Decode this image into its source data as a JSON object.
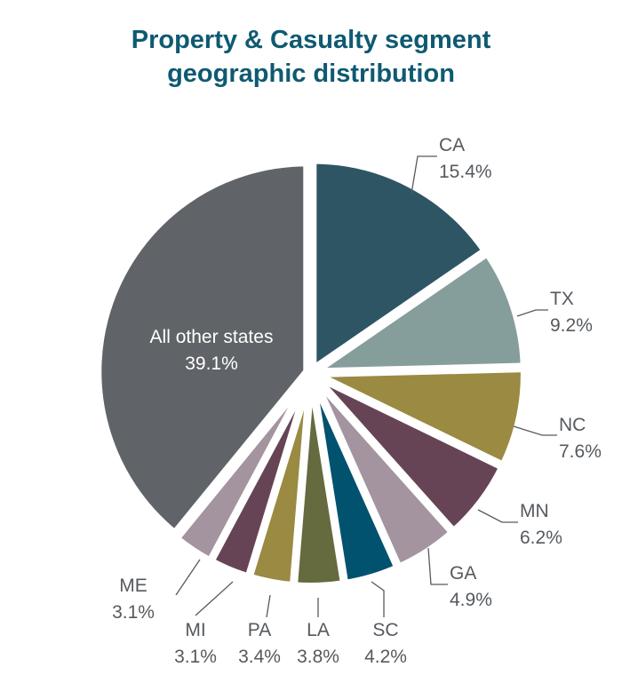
{
  "chart_data": {
    "type": "pie",
    "title": "Property & Casualty segment geographic distribution",
    "title_lines": [
      "Property & Casualty segment",
      "geographic distribution"
    ],
    "unit": "%",
    "slices": [
      {
        "label": "CA",
        "value": 15.4,
        "value_text": "15.4%",
        "color": "#2e5564"
      },
      {
        "label": "TX",
        "value": 9.2,
        "value_text": "9.2%",
        "color": "#869e9b"
      },
      {
        "label": "NC",
        "value": 7.6,
        "value_text": "7.6%",
        "color": "#9a8a42"
      },
      {
        "label": "MN",
        "value": 6.2,
        "value_text": "6.2%",
        "color": "#664456"
      },
      {
        "label": "GA",
        "value": 4.9,
        "value_text": "4.9%",
        "color": "#a3949f"
      },
      {
        "label": "SC",
        "value": 4.2,
        "value_text": "4.2%",
        "color": "#01526f"
      },
      {
        "label": "LA",
        "value": 3.8,
        "value_text": "3.8%",
        "color": "#656a3f"
      },
      {
        "label": "PA",
        "value": 3.4,
        "value_text": "3.4%",
        "color": "#9a8a42"
      },
      {
        "label": "MI",
        "value": 3.1,
        "value_text": "3.1%",
        "color": "#664456"
      },
      {
        "label": "ME",
        "value": 3.1,
        "value_text": "3.1%",
        "color": "#a3949f"
      },
      {
        "label": "All other states",
        "value": 39.1,
        "value_text": "39.1%",
        "color": "#606468"
      }
    ]
  }
}
